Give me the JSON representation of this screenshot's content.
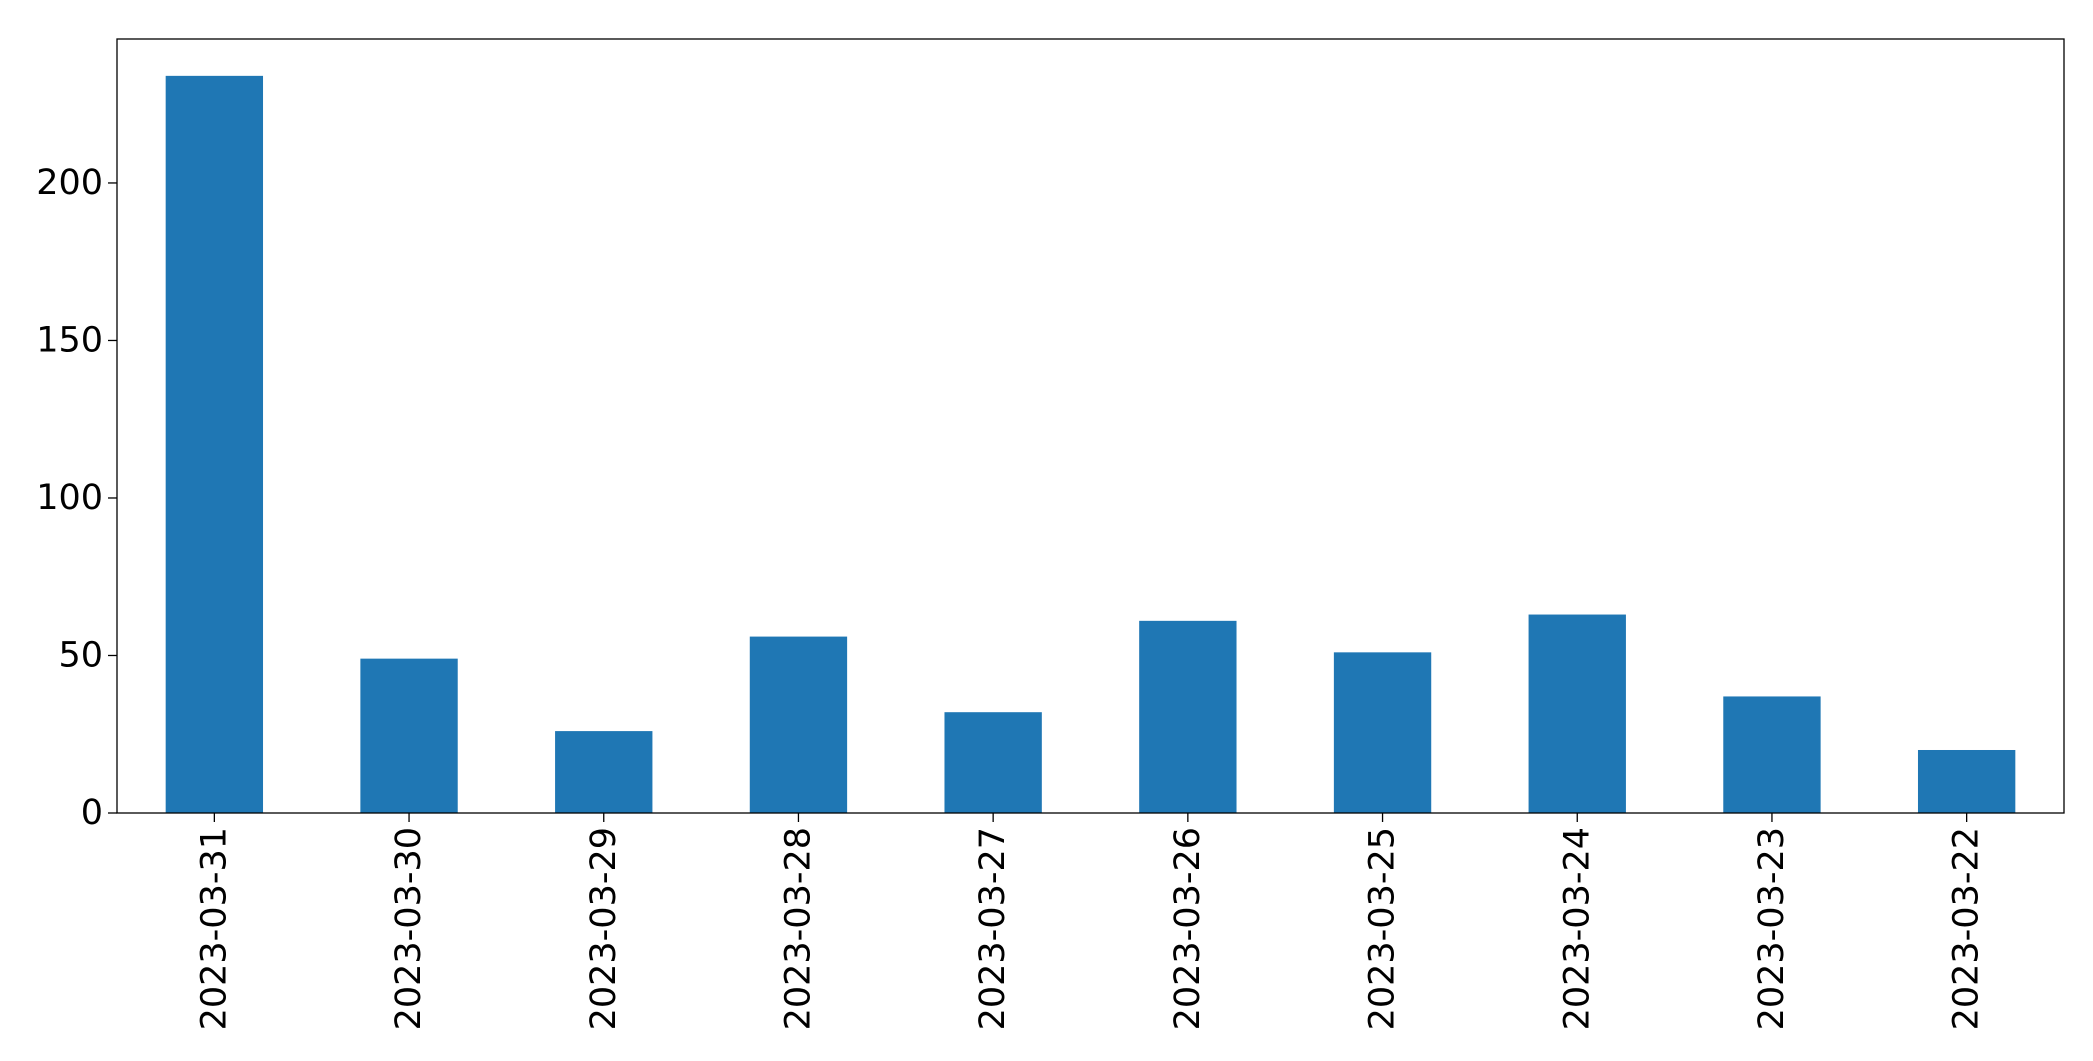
{
  "chart_data": {
    "type": "bar",
    "categories": [
      "2023-03-31",
      "2023-03-30",
      "2023-03-29",
      "2023-03-28",
      "2023-03-27",
      "2023-03-26",
      "2023-03-25",
      "2023-03-24",
      "2023-03-23",
      "2023-03-22"
    ],
    "values": [
      234,
      49,
      26,
      56,
      32,
      61,
      51,
      63,
      37,
      20
    ],
    "color": "#1f77b4",
    "ylim": [
      0,
      245.7
    ],
    "yticks": [
      0,
      50,
      100,
      150,
      200
    ],
    "grid": false
  }
}
